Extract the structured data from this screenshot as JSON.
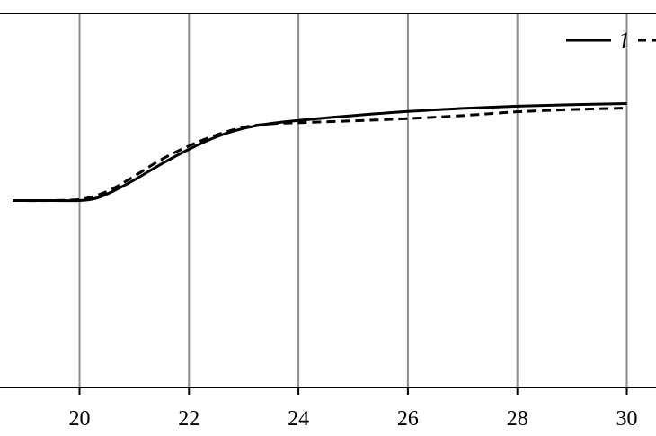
{
  "chart_data": {
    "type": "line",
    "title": "",
    "xlabel": "",
    "ylabel": "",
    "xlim": [
      18.75,
      30.5
    ],
    "ylim": [
      0,
      1
    ],
    "x_ticks": [
      20,
      22,
      24,
      26,
      28,
      30
    ],
    "x_tick_labels": [
      "20",
      "22",
      "24",
      "26",
      "28",
      "30"
    ],
    "grid": "vertical",
    "legend_position": "top-right",
    "series": [
      {
        "name": "1",
        "style": "solid",
        "color": "#000000",
        "x": [
          18.75,
          19.5,
          20.0,
          20.3,
          20.6,
          21.0,
          21.5,
          22.0,
          22.5,
          23.0,
          23.5,
          24.0,
          25.0,
          26.0,
          27.0,
          28.0,
          29.0,
          30.0
        ],
        "y": [
          0.5,
          0.5,
          0.5,
          0.506,
          0.524,
          0.555,
          0.598,
          0.637,
          0.67,
          0.693,
          0.706,
          0.714,
          0.727,
          0.738,
          0.746,
          0.752,
          0.756,
          0.759
        ]
      },
      {
        "name": "",
        "style": "dashed",
        "color": "#000000",
        "x": [
          18.75,
          19.5,
          20.0,
          20.3,
          20.6,
          21.0,
          21.5,
          22.0,
          22.5,
          23.0,
          23.5,
          24.0,
          25.0,
          26.0,
          27.0,
          28.0,
          29.0,
          30.0
        ],
        "y": [
          0.5,
          0.5,
          0.503,
          0.513,
          0.531,
          0.565,
          0.61,
          0.646,
          0.675,
          0.696,
          0.705,
          0.708,
          0.713,
          0.719,
          0.727,
          0.737,
          0.743,
          0.747
        ]
      }
    ]
  }
}
